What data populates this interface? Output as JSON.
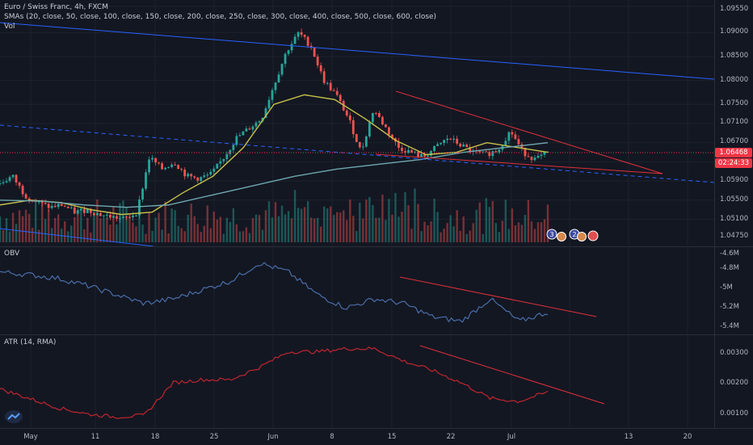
{
  "colors": {
    "up": "#26a69a",
    "down": "#ef5350",
    "sma_yellow": "#c8c24a",
    "sma_teal": "#6fa8b0",
    "trend_blue": "#2962ff",
    "trend_red": "#e0303a",
    "obv": "#4a6ea9",
    "atr": "#c0262f",
    "price_line": "#f23645"
  },
  "price_pane": {
    "title": "Euro / Swiss Franc, 4h, FXCM",
    "sma_label": "SMAs (20, close, 50, close, 100, close, 150, close, 200, close, 250, close, 300, close, 400, close, 500, close, 600, close)",
    "vol_label": "Vol",
    "y_ticks": [
      "1.09550",
      "1.09000",
      "1.08500",
      "1.08000",
      "1.07500",
      "1.07100",
      "1.06700",
      "1.06300",
      "1.05900",
      "1.05500",
      "1.05100",
      "1.04750"
    ],
    "last_price": "1.06468",
    "countdown": "02:24:33",
    "event_badges": [
      "3",
      "2"
    ]
  },
  "obv_pane": {
    "label": "OBV",
    "y_ticks": [
      "-4.6M",
      "-4.8M",
      "-5M",
      "-5.2M",
      "-5.4M"
    ]
  },
  "atr_pane": {
    "label": "ATR (14, RMA)",
    "y_ticks": [
      "0.00300",
      "0.00200",
      "0.00100"
    ]
  },
  "x_ticks": [
    "May",
    "11",
    "18",
    "25",
    "Jun",
    "8",
    "15",
    "22",
    "Jul",
    "13",
    "20"
  ],
  "chart_data": [
    {
      "type": "candlestick",
      "title": "Euro / Swiss Franc, 4h, FXCM",
      "y_range": [
        1.0462,
        1.0968
      ],
      "close_path": [
        1.0585,
        1.06,
        1.056,
        1.0545,
        1.0535,
        1.054,
        1.0525,
        1.053,
        1.052,
        1.0515,
        1.051,
        1.0525,
        1.064,
        1.0615,
        1.063,
        1.06,
        1.0595,
        1.0605,
        1.064,
        1.068,
        1.07,
        1.072,
        1.079,
        1.086,
        1.09,
        1.087,
        1.08,
        1.077,
        1.072,
        1.065,
        1.074,
        1.07,
        1.066,
        1.065,
        1.064,
        1.066,
        1.068,
        1.0665,
        1.065,
        1.0645,
        1.0655,
        1.0695,
        1.065,
        1.0635,
        1.0648
      ],
      "series": [
        {
          "name": "SMA (yellow)",
          "path": [
            1.054,
            1.055,
            1.0545,
            1.053,
            1.052,
            1.0525,
            1.0565,
            1.06,
            1.066,
            1.075,
            1.077,
            1.076,
            1.072,
            1.0675,
            1.0645,
            1.065,
            1.067,
            1.066,
            1.065
          ]
        },
        {
          "name": "SMA (teal)",
          "path": [
            1.055,
            1.0548,
            1.054,
            1.0535,
            1.054,
            1.056,
            1.058,
            1.06,
            1.0615,
            1.0625,
            1.0635,
            1.065,
            1.066,
            1.067
          ]
        }
      ]
    },
    {
      "type": "line",
      "title": "OBV",
      "y_range": [
        -5.5,
        -4.6
      ],
      "values": [
        -4.85,
        -4.88,
        -4.92,
        -5.0,
        -5.1,
        -5.2,
        -5.15,
        -5.05,
        -4.95,
        -4.75,
        -4.85,
        -5.1,
        -5.25,
        -5.15,
        -5.2,
        -5.35,
        -5.4,
        -5.15,
        -5.4,
        -5.3
      ]
    },
    {
      "type": "line",
      "title": "ATR (14, RMA)",
      "y_range": [
        0.0008,
        0.0034
      ],
      "values": [
        0.0019,
        0.0016,
        0.0013,
        0.0011,
        0.001,
        0.00105,
        0.0021,
        0.0022,
        0.0022,
        0.0026,
        0.0031,
        0.0031,
        0.0032,
        0.0032,
        0.0028,
        0.0025,
        0.0021,
        0.0016,
        0.0015,
        0.0018
      ]
    }
  ]
}
